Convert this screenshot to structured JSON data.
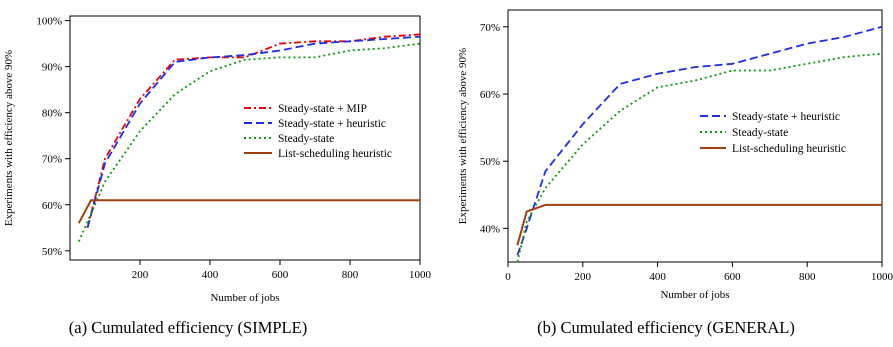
{
  "chart_data": [
    {
      "type": "line",
      "caption": "(a)  Cumulated efficiency (SIMPLE)",
      "xlabel": "Number of jobs",
      "ylabel": "Experiments with efficiency above 90%",
      "xlim": [
        0,
        1000
      ],
      "ylim": [
        48,
        101
      ],
      "xticks": [
        200,
        400,
        600,
        800,
        1000
      ],
      "yticks": [
        50,
        60,
        70,
        80,
        90,
        100
      ],
      "ytick_labels": [
        "50%",
        "60%",
        "70%",
        "80%",
        "90%",
        "100%"
      ],
      "grid": false,
      "legend_position": "right",
      "series": [
        {
          "name": "Steady-state + MIP",
          "color": "#e8000b",
          "dash": "dashdot",
          "x": [
            50,
            100,
            200,
            300,
            400,
            500,
            600,
            700,
            800,
            900,
            1000
          ],
          "y": [
            55,
            70,
            83,
            91.5,
            92,
            92,
            95,
            95.5,
            95.5,
            96.5,
            97
          ]
        },
        {
          "name": "Steady-state + heuristic",
          "color": "#1f2ee0",
          "dash": "dashed",
          "x": [
            50,
            100,
            200,
            300,
            400,
            500,
            600,
            700,
            800,
            900,
            1000
          ],
          "y": [
            55,
            69,
            82,
            91,
            92,
            92.5,
            93.5,
            95,
            95.5,
            96,
            96.5
          ]
        },
        {
          "name": "Steady-state",
          "color": "#0a9a0a",
          "dash": "dotted",
          "x": [
            25,
            100,
            200,
            300,
            400,
            500,
            600,
            700,
            800,
            900,
            1000
          ],
          "y": [
            52,
            65,
            76,
            84,
            89,
            91.5,
            92,
            92,
            93.5,
            94,
            95
          ]
        },
        {
          "name": "List-scheduling heuristic",
          "color": "#a04010",
          "dash": "solid",
          "x": [
            25,
            60,
            100,
            200,
            400,
            600,
            800,
            1000
          ],
          "y": [
            56,
            61,
            61,
            61,
            61,
            61,
            61,
            61
          ]
        }
      ]
    },
    {
      "type": "line",
      "caption": "(b)  Cumulated efficiency (GENERAL)",
      "xlabel": "Number of jobs",
      "ylabel": "Experiments with efficiency above 90%",
      "xlim": [
        0,
        1000
      ],
      "ylim": [
        35,
        72.5
      ],
      "xticks": [
        0,
        200,
        400,
        600,
        800,
        1000
      ],
      "yticks": [
        40,
        50,
        60,
        70
      ],
      "ytick_labels": [
        "40%",
        "50%",
        "60%",
        "70%"
      ],
      "grid": false,
      "legend_position": "right",
      "series": [
        {
          "name": "Steady-state + heuristic",
          "color": "#1f2ee0",
          "dash": "dashed",
          "x": [
            25,
            50,
            100,
            200,
            300,
            400,
            500,
            600,
            700,
            800,
            900,
            1000
          ],
          "y": [
            36,
            40,
            48.5,
            55.5,
            61.5,
            63,
            64,
            64.5,
            66,
            67.5,
            68.5,
            70
          ]
        },
        {
          "name": "Steady-state",
          "color": "#0a9a0a",
          "dash": "dotted",
          "x": [
            25,
            50,
            100,
            200,
            300,
            400,
            500,
            600,
            700,
            800,
            900,
            1000
          ],
          "y": [
            35,
            41,
            46,
            52.5,
            57.5,
            61,
            62,
            63.5,
            63.5,
            64.5,
            65.5,
            66
          ]
        },
        {
          "name": "List-scheduling heuristic",
          "color": "#a04010",
          "dash": "solid",
          "x": [
            25,
            50,
            100,
            200,
            400,
            600,
            800,
            1000
          ],
          "y": [
            37.5,
            42.5,
            43.5,
            43.5,
            43.5,
            43.5,
            43.5,
            43.5
          ]
        }
      ]
    }
  ]
}
